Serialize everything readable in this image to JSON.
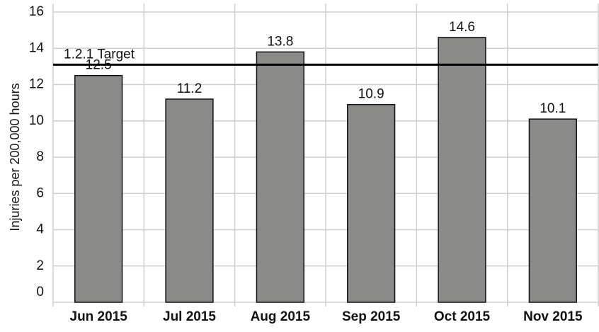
{
  "chart_data": {
    "type": "bar",
    "y_label": "Injuries per 200,000 hours",
    "categories": [
      "Jun 2015",
      "Jul 2015",
      "Aug 2015",
      "Sep 2015",
      "Oct 2015",
      "Nov 2015"
    ],
    "values": [
      12.5,
      11.2,
      13.8,
      10.9,
      14.6,
      10.1
    ],
    "color": "#8a8b89",
    "ylim": [
      0,
      16
    ],
    "yticks": [
      0,
      2,
      4,
      6,
      8,
      10,
      12,
      14,
      16
    ],
    "grid": true,
    "target": {
      "label": "1.2.1 Target",
      "value": 13.1
    }
  }
}
